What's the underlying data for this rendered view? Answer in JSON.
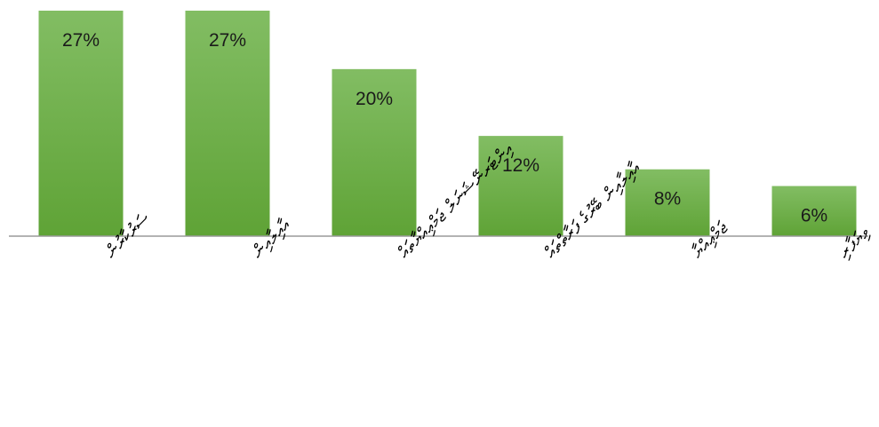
{
  "chart_data": {
    "type": "bar",
    "title": "",
    "xlabel": "",
    "ylabel": "",
    "categories": [
      "ސަރުކާރުން",
      "އާއިލާއިން",
      "އިންޓަރނޭޝަނަލް ޖަމްޢިއްޔާތައް",
      "އާއިލާއިން ބޭރުގެ ފަރާތްތައް",
      "ޖަމްޢިއްޔާ",
      "ވިޔަފާރި"
    ],
    "values": [
      27,
      27,
      20,
      12,
      8,
      6
    ],
    "value_labels": [
      "27%",
      "27%",
      "20%",
      "12%",
      "8%",
      "6%"
    ],
    "ylim": [
      0,
      27
    ],
    "grid": false,
    "legend": "none",
    "colors": {
      "bar_top": "#82bd63",
      "bar_bottom": "#5fa336",
      "axis": "#9a9a9a"
    }
  }
}
